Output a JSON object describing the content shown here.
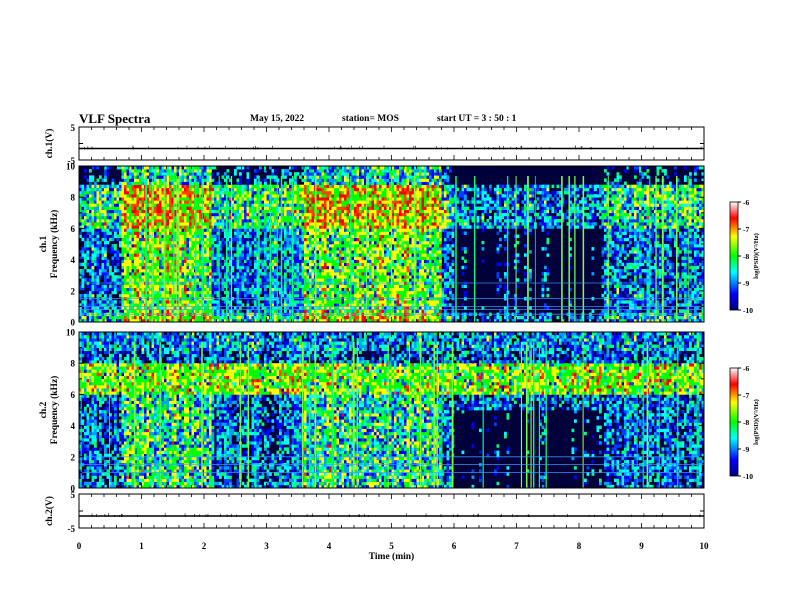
{
  "header": {
    "title": "VLF Spectra",
    "date": "May 15, 2022",
    "station": "station= MOS",
    "start": "start  UT =   3 : 50 : 1"
  },
  "chart_data": [
    {
      "type": "line",
      "ylabel": "ch.1(V)",
      "ylim": [
        -5,
        5
      ],
      "yticks": [
        "5",
        "-5"
      ],
      "x": [
        0,
        10
      ],
      "values": [
        0,
        0
      ]
    },
    {
      "type": "heatmap",
      "ylabel": "ch.1 Frequency (kHz)",
      "ylim": [
        0,
        10
      ],
      "yticks": [
        "0",
        "2",
        "4",
        "6",
        "8",
        "10"
      ],
      "xlim": [
        0,
        10
      ],
      "colorbar": {
        "label": "log(PSD)(V²/Hz)",
        "range": [
          -10,
          -6
        ],
        "ticks": [
          "-6",
          "-7",
          "-8",
          "-9",
          "-10"
        ]
      },
      "active_intervals_min": [
        [
          0.7,
          2.1
        ],
        [
          3.6,
          5.8
        ]
      ],
      "narrowband_lines_khz": [
        0.5,
        0.8,
        1.0,
        1.5,
        2.5
      ]
    },
    {
      "type": "heatmap",
      "ylabel": "ch.2 Frequency (kHz)",
      "ylim": [
        0,
        10
      ],
      "yticks": [
        "0",
        "2",
        "4",
        "6",
        "8",
        "10"
      ],
      "xlim": [
        0,
        10
      ],
      "colorbar": {
        "label": "log(PSD)(V²/Hz)",
        "range": [
          -10,
          -6
        ],
        "ticks": [
          "-6",
          "-7",
          "-8",
          "-9",
          "-10"
        ]
      },
      "active_intervals_min": [
        [
          0.7,
          2.1
        ],
        [
          3.6,
          5.8
        ]
      ],
      "peak_band_khz": [
        6,
        8
      ]
    },
    {
      "type": "line",
      "ylabel": "ch.2(V)",
      "ylim": [
        -5,
        5
      ],
      "yticks": [
        "5",
        "-5"
      ],
      "xlabel": "Time  (min)",
      "xticks": [
        "0",
        "1",
        "2",
        "3",
        "4",
        "5",
        "6",
        "7",
        "8",
        "9",
        "10"
      ],
      "x": [
        0,
        10
      ],
      "values": [
        0,
        0
      ]
    }
  ],
  "colors": {
    "spectrum_background": "#00003a",
    "axis": "#000000"
  }
}
